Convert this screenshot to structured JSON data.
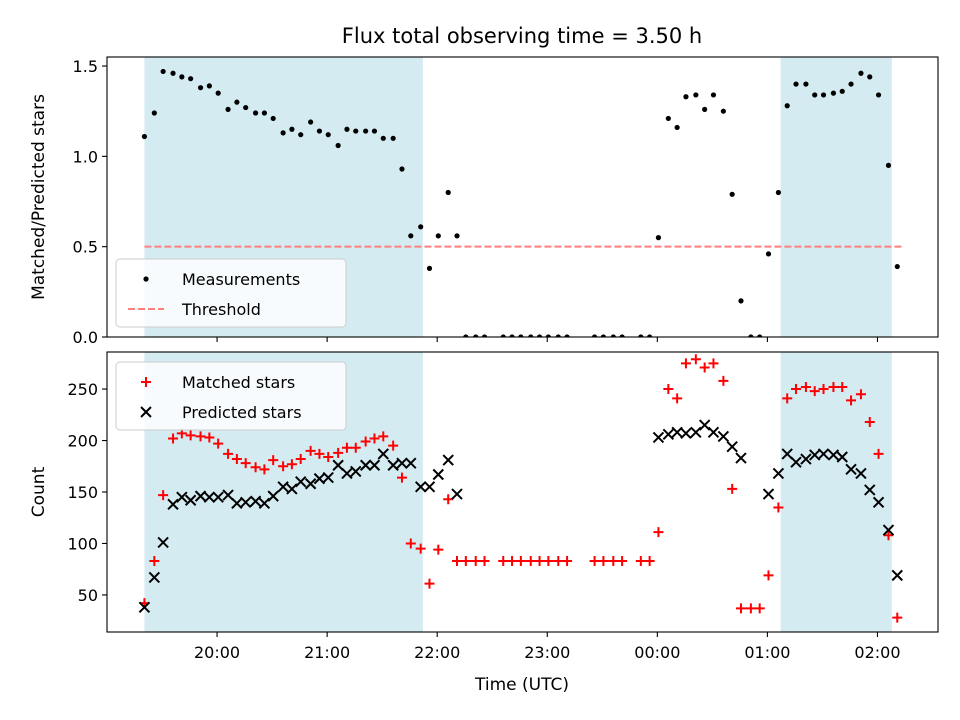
{
  "figure": {
    "title": "Flux total observing time = 3.50 h",
    "xlabel": "Time (UTC)",
    "x_ticks": [
      {
        "t": 20.0,
        "label": "20:00"
      },
      {
        "t": 21.0,
        "label": "21:00"
      },
      {
        "t": 22.0,
        "label": "22:00"
      },
      {
        "t": 23.0,
        "label": "23:00"
      },
      {
        "t": 24.0,
        "label": "00:00"
      },
      {
        "t": 25.0,
        "label": "01:00"
      },
      {
        "t": 26.0,
        "label": "02:00"
      }
    ]
  },
  "colors": {
    "band": "#add8e6",
    "measurements": "#000000",
    "threshold": "#ff7f7f",
    "matched": "#ff0000",
    "predicted": "#000000",
    "axis": "#000000"
  },
  "chart_data": [
    {
      "type": "scatter",
      "ylabel": "Matched/Predicted stars",
      "xlim": [
        19.0,
        26.55
      ],
      "ylim": [
        0,
        1.55
      ],
      "y_ticks": [
        0,
        0.5,
        1.0,
        1.5
      ],
      "y_tick_labels": [
        "0.0",
        "0.5",
        "1.0",
        "1.5"
      ],
      "legend_position": "lower-left",
      "bands": [
        [
          19.34,
          21.87
        ],
        [
          25.12,
          26.13
        ]
      ],
      "threshold": {
        "name": "Threshold",
        "value": 0.5,
        "x_range": [
          19.34,
          26.22
        ]
      },
      "series": [
        {
          "name": "Measurements",
          "marker": "dot",
          "x": [
            19.34,
            19.43,
            19.51,
            19.6,
            19.68,
            19.76,
            19.85,
            19.93,
            20.01,
            20.1,
            20.18,
            20.26,
            20.35,
            20.43,
            20.51,
            20.6,
            20.68,
            20.76,
            20.85,
            20.93,
            21.01,
            21.1,
            21.18,
            21.26,
            21.35,
            21.43,
            21.51,
            21.6,
            21.68,
            21.76,
            21.85,
            21.93,
            22.01,
            22.1,
            22.18,
            22.26,
            22.35,
            22.43,
            22.6,
            22.68,
            22.76,
            22.85,
            22.93,
            23.01,
            23.1,
            23.18,
            23.43,
            23.51,
            23.6,
            23.68,
            23.85,
            23.93,
            24.01,
            24.1,
            24.18,
            24.26,
            24.35,
            24.43,
            24.51,
            24.6,
            24.68,
            24.76,
            24.85,
            24.93,
            25.01,
            25.1,
            25.18,
            25.26,
            25.35,
            25.43,
            25.51,
            25.6,
            25.68,
            25.76,
            25.85,
            25.93,
            26.01,
            26.1,
            26.18
          ],
          "y": [
            1.11,
            1.24,
            1.47,
            1.46,
            1.44,
            1.43,
            1.38,
            1.39,
            1.35,
            1.26,
            1.3,
            1.27,
            1.24,
            1.24,
            1.21,
            1.13,
            1.15,
            1.12,
            1.19,
            1.14,
            1.12,
            1.06,
            1.15,
            1.14,
            1.14,
            1.14,
            1.1,
            1.1,
            0.93,
            0.56,
            0.61,
            0.38,
            0.56,
            0.8,
            0.56,
            0.0,
            0.0,
            0.0,
            0.0,
            0.0,
            0.0,
            0.0,
            0.0,
            0.0,
            0.0,
            0.0,
            0.0,
            0.0,
            0.0,
            0.0,
            0.0,
            0.0,
            0.55,
            1.21,
            1.16,
            1.33,
            1.34,
            1.26,
            1.34,
            1.25,
            0.79,
            0.2,
            0.0,
            0.0,
            0.46,
            0.8,
            1.28,
            1.4,
            1.4,
            1.34,
            1.34,
            1.35,
            1.36,
            1.4,
            1.46,
            1.44,
            1.34,
            0.95,
            0.39
          ]
        }
      ]
    },
    {
      "type": "scatter",
      "ylabel": "Count",
      "xlim": [
        19.0,
        26.55
      ],
      "ylim": [
        14,
        286
      ],
      "y_ticks": [
        50,
        100,
        150,
        200,
        250
      ],
      "y_tick_labels": [
        "50",
        "100",
        "150",
        "200",
        "250"
      ],
      "legend_position": "upper-left",
      "bands": [
        [
          19.34,
          21.87
        ],
        [
          25.12,
          26.13
        ]
      ],
      "series": [
        {
          "name": "Matched stars",
          "marker": "plus",
          "x": [
            19.34,
            19.43,
            19.51,
            19.6,
            19.68,
            19.76,
            19.85,
            19.93,
            20.01,
            20.1,
            20.18,
            20.26,
            20.35,
            20.43,
            20.51,
            20.6,
            20.68,
            20.76,
            20.85,
            20.93,
            21.01,
            21.1,
            21.18,
            21.26,
            21.35,
            21.43,
            21.51,
            21.6,
            21.68,
            21.76,
            21.85,
            21.93,
            22.01,
            22.1,
            22.18,
            22.26,
            22.35,
            22.43,
            22.6,
            22.68,
            22.76,
            22.85,
            22.93,
            23.01,
            23.1,
            23.18,
            23.43,
            23.51,
            23.6,
            23.68,
            23.85,
            23.93,
            24.01,
            24.1,
            24.18,
            24.26,
            24.35,
            24.43,
            24.51,
            24.6,
            24.68,
            24.76,
            24.85,
            24.93,
            25.01,
            25.1,
            25.18,
            25.26,
            25.35,
            25.43,
            25.51,
            25.6,
            25.68,
            25.76,
            25.85,
            25.93,
            26.01,
            26.1,
            26.18
          ],
          "y": [
            42,
            83,
            147,
            202,
            207,
            205,
            204,
            203,
            197,
            187,
            182,
            178,
            174,
            172,
            181,
            175,
            177,
            182,
            190,
            187,
            184,
            188,
            193,
            193,
            199,
            202,
            204,
            195,
            164,
            100,
            95,
            61,
            94,
            143,
            83,
            83,
            83,
            83,
            83,
            83,
            83,
            83,
            83,
            83,
            83,
            83,
            83,
            83,
            83,
            83,
            83,
            83,
            111,
            250,
            241,
            275,
            279,
            271,
            275,
            258,
            153,
            37,
            37,
            37,
            69,
            135,
            241,
            250,
            252,
            248,
            250,
            252,
            252,
            239,
            245,
            218,
            187,
            108,
            28
          ]
        },
        {
          "name": "Predicted stars",
          "marker": "x",
          "x": [
            19.34,
            19.43,
            19.51,
            19.6,
            19.68,
            19.76,
            19.85,
            19.93,
            20.01,
            20.1,
            20.18,
            20.26,
            20.35,
            20.43,
            20.51,
            20.6,
            20.68,
            20.76,
            20.85,
            20.93,
            21.01,
            21.1,
            21.18,
            21.26,
            21.35,
            21.43,
            21.51,
            21.6,
            21.68,
            21.76,
            21.85,
            21.93,
            22.01,
            22.1,
            22.18,
            24.01,
            24.1,
            24.18,
            24.26,
            24.35,
            24.43,
            24.51,
            24.6,
            24.68,
            24.76,
            25.01,
            25.1,
            25.18,
            25.26,
            25.35,
            25.43,
            25.51,
            25.6,
            25.68,
            25.76,
            25.85,
            25.93,
            26.01,
            26.1,
            26.18
          ],
          "y": [
            38,
            67,
            101,
            138,
            145,
            142,
            146,
            145,
            145,
            147,
            139,
            140,
            141,
            139,
            146,
            155,
            153,
            160,
            158,
            163,
            164,
            176,
            168,
            170,
            176,
            176,
            187,
            176,
            178,
            178,
            155,
            155,
            167,
            181,
            148,
            203,
            206,
            208,
            207,
            208,
            215,
            208,
            204,
            194,
            183,
            148,
            168,
            187,
            179,
            182,
            186,
            187,
            186,
            184,
            172,
            168,
            152,
            140,
            113,
            69
          ]
        }
      ]
    }
  ]
}
